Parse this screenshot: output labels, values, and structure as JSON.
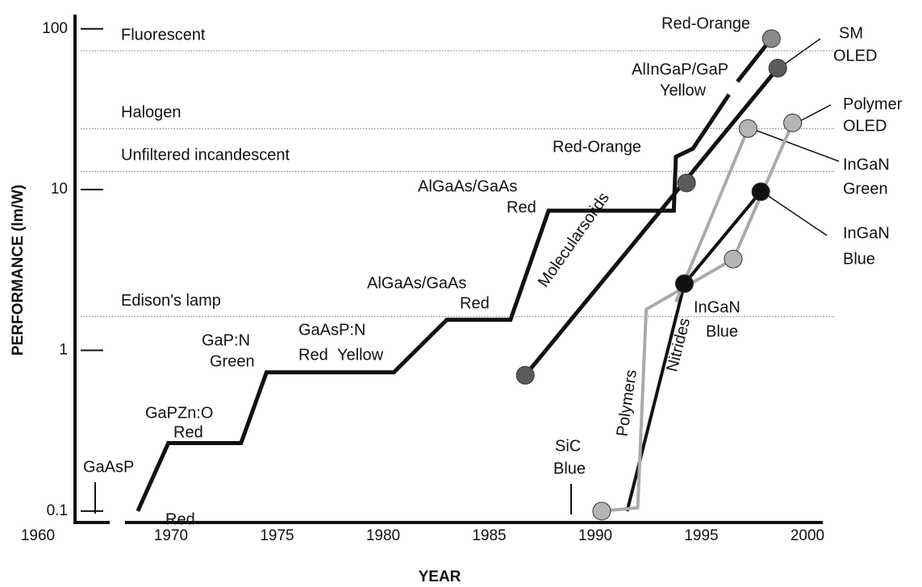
{
  "chart_data": {
    "type": "line",
    "xlabel": "YEAR",
    "ylabel": "PERFORMANCE (lm/W)",
    "log_y": true,
    "grid": false,
    "xlim": [
      1960,
      2000
    ],
    "xticks": [
      1960,
      1970,
      1975,
      1980,
      1985,
      1990,
      1995,
      2000
    ],
    "ylim": [
      0.085,
      120
    ],
    "yticks": [
      0.1,
      1,
      10,
      100
    ],
    "reference_lines": [
      {
        "label": "Fluorescent",
        "value": 73
      },
      {
        "label": "Halogen",
        "value": 24
      },
      {
        "label": "Unfiltered incandescent",
        "value": 13
      },
      {
        "label": "Edison's lamp",
        "value": 1.62
      }
    ],
    "series": [
      {
        "color": "#111111",
        "width": 5,
        "x": [
          1967.5,
          1969.8,
          1973.3,
          1974.5,
          1980.5,
          1983.0,
          1986.0,
          1987.8,
          1993.7,
          1993.8,
          1994.6,
          1996.3,
          1996.5,
          1996.7,
          1998.3
        ],
        "values": [
          0.1,
          0.265,
          0.265,
          0.73,
          0.73,
          1.55,
          1.55,
          7.4,
          7.4,
          16,
          18,
          39,
          null,
          47,
          87
        ]
      },
      {
        "color": "#111111",
        "width": 5,
        "x": [
          1986.7,
          1998.6
        ],
        "values": [
          0.7,
          57
        ]
      },
      {
        "color": "#111111",
        "width": 4,
        "x": [
          1991.5,
          1994.2,
          1997.8
        ],
        "values": [
          0.1,
          2.6,
          9.7
        ]
      },
      {
        "color": "#aaaaaa",
        "width": 4,
        "x": [
          1990.3,
          1992.0,
          1992.4,
          1996.5,
          1999.3
        ],
        "values": [
          0.1,
          0.105,
          1.8,
          3.7,
          26
        ]
      },
      {
        "color": "#aaaaaa",
        "width": 4,
        "x": [
          1993.8,
          1997.2
        ],
        "values": [
          2.0,
          24
        ]
      }
    ],
    "points": {
      "x": [
        1998.3,
        1998.6,
        1994.3,
        1986.7,
        1997.2,
        1999.3,
        1997.8,
        1994.2,
        1996.5,
        1990.3
      ],
      "values": [
        87,
        57,
        11,
        0.7,
        24,
        26,
        9.7,
        2.6,
        3.7,
        0.1
      ],
      "colors": [
        "#8a8a8a",
        "#5a5a5a",
        "#5a5a5a",
        "#5a5a5a",
        "#b5b5b5",
        "#b5b5b5",
        "#111111",
        "#111111",
        "#b5b5b5",
        "#b5b5b5"
      ]
    },
    "annotations": [
      {
        "text": "Red-Orange",
        "color": "#999999"
      },
      {
        "text": "AlInGaP/GaP",
        "color": "#111111"
      },
      {
        "text": "Yellow",
        "color": "#bbbbbb"
      },
      {
        "text": "Red-Orange",
        "color": "#999999"
      },
      {
        "text": "AlGaAs/GaAs",
        "color": "#111111"
      },
      {
        "text": "Red",
        "color": "#999999"
      },
      {
        "text": "AlGaAs/GaAs",
        "color": "#111111"
      },
      {
        "text": "Red",
        "color": "#999999"
      },
      {
        "text": "GaAsP:N",
        "color": "#111111"
      },
      {
        "text": "Red",
        "color": "#111111"
      },
      {
        "text": "Yellow",
        "color": "#bbbbbb"
      },
      {
        "text": "GaP:N",
        "color": "#111111"
      },
      {
        "text": "Green",
        "color": "#999999"
      },
      {
        "text": "GaPZn:O",
        "color": "#111111"
      },
      {
        "text": "Red",
        "color": "#999999"
      },
      {
        "text": "GaAsP",
        "color": "#111111"
      },
      {
        "text": "Red",
        "color": "#999999"
      },
      {
        "text": "SiC",
        "color": "#111111"
      },
      {
        "text": "Blue",
        "color": "#111111"
      },
      {
        "text": "Polymers",
        "color": "#111111"
      },
      {
        "text": "Nitrides",
        "color": "#111111"
      },
      {
        "text": "Molecularsolids",
        "color": "#111111"
      },
      {
        "text": "InGaN",
        "color": "#111111"
      },
      {
        "text": "Blue",
        "color": "#111111"
      },
      {
        "text": "SM",
        "color": "#111111"
      },
      {
        "text": "OLED",
        "color": "#111111"
      },
      {
        "text": "Polymer",
        "color": "#111111"
      },
      {
        "text": "OLED",
        "color": "#111111"
      },
      {
        "text": "InGaN",
        "color": "#111111"
      },
      {
        "text": "Green",
        "color": "#111111"
      },
      {
        "text": "InGaN",
        "color": "#111111"
      },
      {
        "text": "Blue",
        "color": "#111111"
      }
    ]
  }
}
